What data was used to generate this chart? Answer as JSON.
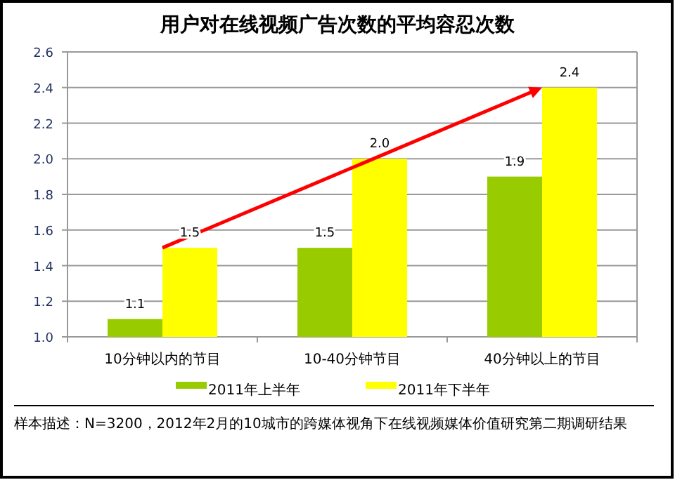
{
  "chart_data": {
    "type": "bar",
    "title": "用户对在线视频广告次数的平均容忍次数",
    "categories": [
      "10分钟以内的节目",
      "10-40分钟节目",
      "40分钟以上的节目"
    ],
    "series": [
      {
        "name": "2011年上半年",
        "color": "#99cc00",
        "values": [
          1.1,
          1.5,
          1.9
        ],
        "value_labels": [
          "1.1",
          "1.5",
          "1.9"
        ]
      },
      {
        "name": "2011年下半年",
        "color": "#ffff00",
        "values": [
          1.5,
          2.0,
          2.4
        ],
        "value_labels": [
          "1.5",
          "2.0",
          "2.4"
        ]
      }
    ],
    "ylim": [
      1.0,
      2.6
    ],
    "yticks": [
      {
        "value": 1.0,
        "label": "1.0"
      },
      {
        "value": 1.2,
        "label": "1.2"
      },
      {
        "value": 1.4,
        "label": "1.4"
      },
      {
        "value": 1.6,
        "label": "1.6"
      },
      {
        "value": 1.8,
        "label": "1.8"
      },
      {
        "value": 2.0,
        "label": "2.0"
      },
      {
        "value": 2.2,
        "label": "2.2"
      },
      {
        "value": 2.4,
        "label": "2.4"
      },
      {
        "value": 2.6,
        "label": "2.6"
      }
    ],
    "grid": "y",
    "legend": "bottom",
    "annotations": [
      "样本描述：N=3200，2012年2月的10城市的跨媒体视角下在线视频媒体价值研究第二期调研结果"
    ]
  }
}
